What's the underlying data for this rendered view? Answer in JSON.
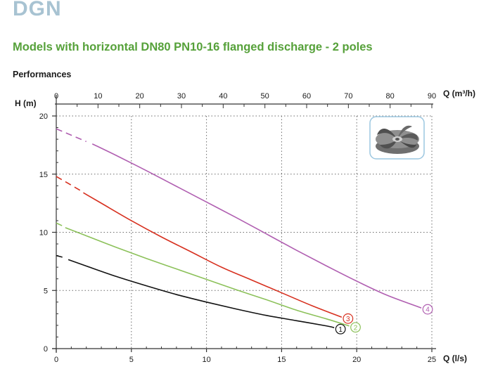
{
  "header": {
    "series": "DGN",
    "subtitle": "Models with horizontal DN80 PN10-16 flanged discharge - 2 poles",
    "section": "Performances"
  },
  "colors": {
    "series_title": "#a8c3d2",
    "subtitle": "#56a13a",
    "curve_1": "#111111",
    "curve_2": "#8cc15a",
    "curve_3": "#d7301f",
    "curve_4": "#b05fb1"
  },
  "chart_data": {
    "type": "line",
    "xlabel": "Q (l/s)",
    "ylabel": "H (m)",
    "x2label": "Q (m³/h)",
    "xlim": [
      0,
      25
    ],
    "ylim": [
      0,
      20
    ],
    "x2lim": [
      0,
      90
    ],
    "x_ticks": [
      "0",
      "5",
      "10",
      "15",
      "20",
      "25"
    ],
    "y_ticks": [
      "0",
      "5",
      "10",
      "15",
      "20"
    ],
    "x2_ticks": [
      "0",
      "10",
      "20",
      "30",
      "40",
      "50",
      "60",
      "70",
      "80",
      "90"
    ],
    "grid": true,
    "series": [
      {
        "name": "1",
        "color": "#111111",
        "dashed_x": [
          0,
          0.6
        ],
        "dashed_y": [
          8.0,
          7.8
        ],
        "x": [
          0.8,
          2,
          4,
          6,
          8,
          10,
          12,
          14,
          16,
          18,
          18.5
        ],
        "y": [
          7.65,
          7.1,
          6.2,
          5.4,
          4.65,
          4.0,
          3.4,
          2.85,
          2.4,
          1.95,
          1.8
        ]
      },
      {
        "name": "2",
        "color": "#8cc15a",
        "dashed_x": [
          0,
          0.5
        ],
        "dashed_y": [
          10.8,
          10.5
        ],
        "x": [
          0.6,
          2,
          4,
          6,
          8,
          10,
          12,
          14,
          16,
          18,
          19.5
        ],
        "y": [
          10.4,
          9.7,
          8.7,
          7.75,
          6.85,
          5.95,
          5.05,
          4.2,
          3.3,
          2.55,
          1.95
        ]
      },
      {
        "name": "3",
        "color": "#d7301f",
        "dashed_x": [
          0,
          1.6
        ],
        "dashed_y": [
          14.8,
          13.6
        ],
        "x": [
          1.8,
          3,
          5,
          7,
          9,
          11,
          13,
          15,
          17,
          19
        ],
        "y": [
          13.4,
          12.5,
          11.0,
          9.6,
          8.3,
          7.0,
          5.9,
          4.8,
          3.7,
          2.7
        ]
      },
      {
        "name": "4",
        "color": "#b05fb1",
        "dashed_x": [
          0,
          2.0
        ],
        "dashed_y": [
          18.9,
          17.8
        ],
        "x": [
          2.4,
          4,
          6,
          8,
          10,
          12,
          14,
          16,
          18,
          20,
          22,
          24.3
        ],
        "y": [
          17.6,
          16.6,
          15.3,
          13.95,
          12.6,
          11.25,
          9.85,
          8.45,
          7.1,
          5.8,
          4.6,
          3.5
        ]
      }
    ]
  }
}
